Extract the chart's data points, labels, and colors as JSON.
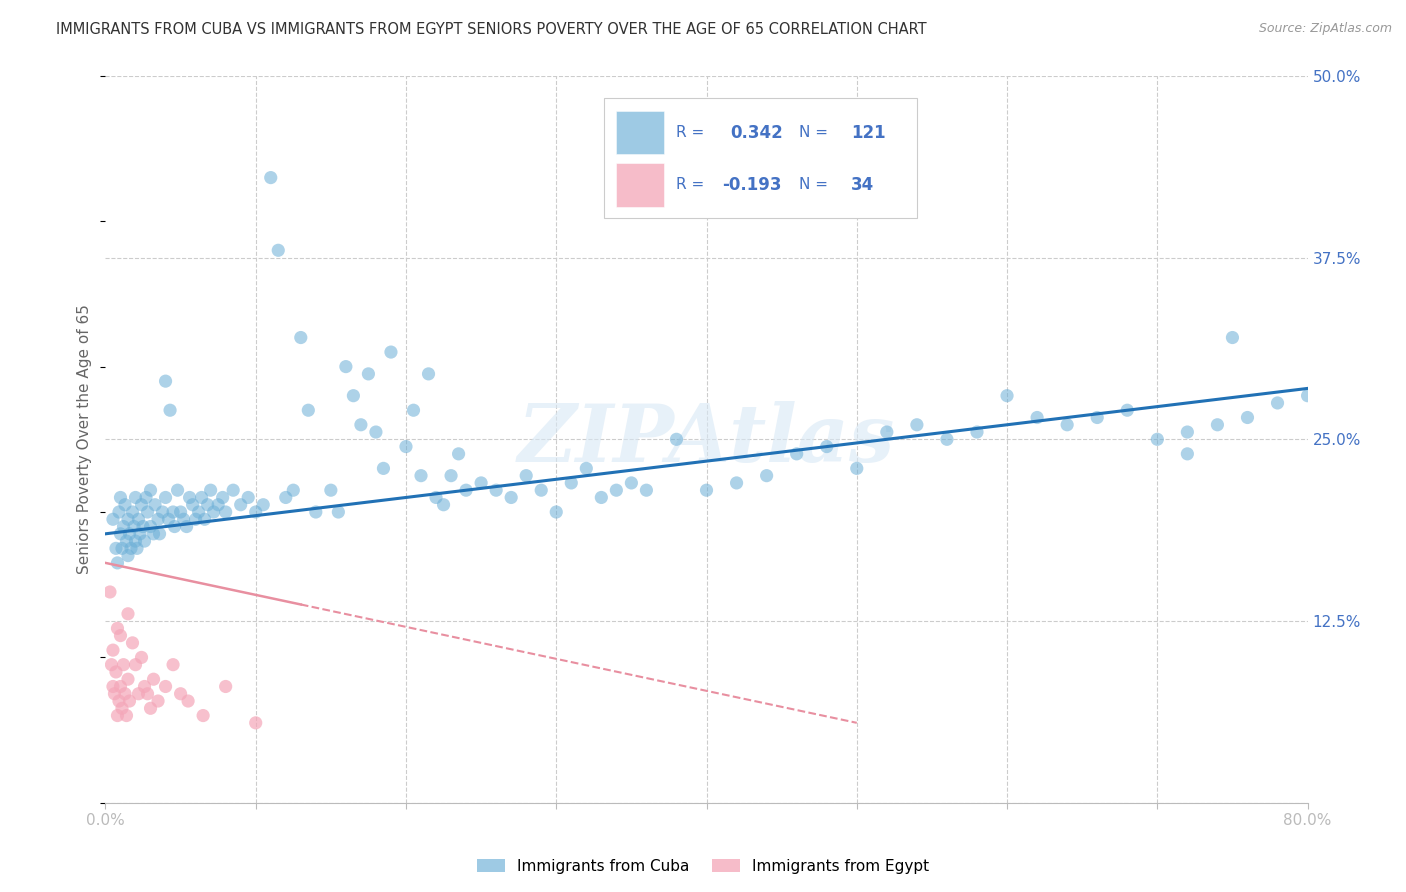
{
  "title": "IMMIGRANTS FROM CUBA VS IMMIGRANTS FROM EGYPT SENIORS POVERTY OVER THE AGE OF 65 CORRELATION CHART",
  "source": "Source: ZipAtlas.com",
  "ylabel": "Seniors Poverty Over the Age of 65",
  "xlim": [
    0.0,
    0.8
  ],
  "ylim": [
    0.0,
    0.5
  ],
  "cuba_color": "#6baed6",
  "egypt_color": "#f4a6b8",
  "cuba_line_color": "#2171b5",
  "egypt_line_color": "#e88fa0",
  "cuba_R": "0.342",
  "cuba_N": "121",
  "egypt_R": "-0.193",
  "egypt_N": "34",
  "legend_label_cuba": "Immigrants from Cuba",
  "legend_label_egypt": "Immigrants from Egypt",
  "watermark": "ZIPAtlas",
  "background_color": "#ffffff",
  "grid_color": "#cccccc",
  "title_color": "#333333",
  "tick_label_color": "#4472c4",
  "stat_label_color": "#4472c4",
  "cuba_scatter_x": [
    0.005,
    0.007,
    0.008,
    0.009,
    0.01,
    0.01,
    0.011,
    0.012,
    0.013,
    0.014,
    0.015,
    0.015,
    0.016,
    0.017,
    0.018,
    0.019,
    0.02,
    0.02,
    0.021,
    0.022,
    0.023,
    0.024,
    0.025,
    0.026,
    0.027,
    0.028,
    0.03,
    0.03,
    0.032,
    0.033,
    0.035,
    0.036,
    0.038,
    0.04,
    0.04,
    0.042,
    0.043,
    0.045,
    0.046,
    0.048,
    0.05,
    0.052,
    0.054,
    0.056,
    0.058,
    0.06,
    0.062,
    0.064,
    0.066,
    0.068,
    0.07,
    0.072,
    0.075,
    0.078,
    0.08,
    0.085,
    0.09,
    0.095,
    0.1,
    0.105,
    0.11,
    0.115,
    0.12,
    0.125,
    0.13,
    0.135,
    0.14,
    0.15,
    0.155,
    0.16,
    0.165,
    0.17,
    0.175,
    0.18,
    0.185,
    0.19,
    0.2,
    0.205,
    0.21,
    0.215,
    0.22,
    0.225,
    0.23,
    0.235,
    0.24,
    0.25,
    0.26,
    0.27,
    0.28,
    0.29,
    0.3,
    0.31,
    0.32,
    0.33,
    0.34,
    0.35,
    0.36,
    0.38,
    0.4,
    0.42,
    0.44,
    0.46,
    0.48,
    0.5,
    0.52,
    0.54,
    0.56,
    0.58,
    0.6,
    0.62,
    0.64,
    0.66,
    0.68,
    0.7,
    0.72,
    0.74,
    0.76,
    0.78,
    0.8,
    0.75,
    0.72
  ],
  "cuba_scatter_y": [
    0.195,
    0.175,
    0.165,
    0.2,
    0.185,
    0.21,
    0.175,
    0.19,
    0.205,
    0.18,
    0.17,
    0.195,
    0.185,
    0.175,
    0.2,
    0.19,
    0.18,
    0.21,
    0.175,
    0.195,
    0.185,
    0.205,
    0.19,
    0.18,
    0.21,
    0.2,
    0.19,
    0.215,
    0.185,
    0.205,
    0.195,
    0.185,
    0.2,
    0.29,
    0.21,
    0.195,
    0.27,
    0.2,
    0.19,
    0.215,
    0.2,
    0.195,
    0.19,
    0.21,
    0.205,
    0.195,
    0.2,
    0.21,
    0.195,
    0.205,
    0.215,
    0.2,
    0.205,
    0.21,
    0.2,
    0.215,
    0.205,
    0.21,
    0.2,
    0.205,
    0.43,
    0.38,
    0.21,
    0.215,
    0.32,
    0.27,
    0.2,
    0.215,
    0.2,
    0.3,
    0.28,
    0.26,
    0.295,
    0.255,
    0.23,
    0.31,
    0.245,
    0.27,
    0.225,
    0.295,
    0.21,
    0.205,
    0.225,
    0.24,
    0.215,
    0.22,
    0.215,
    0.21,
    0.225,
    0.215,
    0.2,
    0.22,
    0.23,
    0.21,
    0.215,
    0.22,
    0.215,
    0.25,
    0.215,
    0.22,
    0.225,
    0.24,
    0.245,
    0.23,
    0.255,
    0.26,
    0.25,
    0.255,
    0.28,
    0.265,
    0.26,
    0.265,
    0.27,
    0.25,
    0.255,
    0.26,
    0.265,
    0.275,
    0.28,
    0.32,
    0.24
  ],
  "egypt_scatter_x": [
    0.003,
    0.004,
    0.005,
    0.005,
    0.006,
    0.007,
    0.008,
    0.008,
    0.009,
    0.01,
    0.01,
    0.011,
    0.012,
    0.013,
    0.014,
    0.015,
    0.015,
    0.016,
    0.018,
    0.02,
    0.022,
    0.024,
    0.026,
    0.028,
    0.03,
    0.032,
    0.035,
    0.04,
    0.045,
    0.05,
    0.055,
    0.065,
    0.08,
    0.1
  ],
  "egypt_scatter_y": [
    0.145,
    0.095,
    0.08,
    0.105,
    0.075,
    0.09,
    0.06,
    0.12,
    0.07,
    0.08,
    0.115,
    0.065,
    0.095,
    0.075,
    0.06,
    0.085,
    0.13,
    0.07,
    0.11,
    0.095,
    0.075,
    0.1,
    0.08,
    0.075,
    0.065,
    0.085,
    0.07,
    0.08,
    0.095,
    0.075,
    0.07,
    0.06,
    0.08,
    0.055
  ],
  "cuba_line_x0": 0.0,
  "cuba_line_x1": 0.8,
  "cuba_line_y0": 0.185,
  "cuba_line_y1": 0.285,
  "egypt_line_x0": 0.0,
  "egypt_line_x1": 0.5,
  "egypt_line_y0": 0.165,
  "egypt_line_y1": 0.055
}
